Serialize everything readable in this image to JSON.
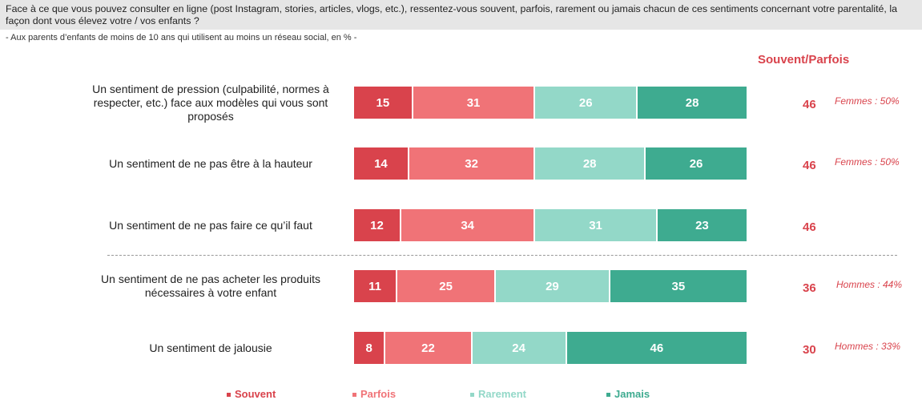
{
  "header": {
    "question": "Face à ce que vous pouvez consulter en ligne (post Instagram, stories, articles, vlogs, etc.), ressentez-vous souvent, parfois, rarement ou jamais chacun de ces sentiments concernant votre parentalité, la façon dont vous élevez votre / vos enfants ?",
    "subtitle": "- Aux parents d’enfants de moins de 10 ans qui utilisent au moins un réseau social, en % -"
  },
  "summary_header": "Souvent/Parfois",
  "colors": {
    "Souvent": "#d9434c",
    "Parfois": "#f07377",
    "Rarement": "#93d8c8",
    "Jamais": "#3eab90",
    "accent": "#d9434c"
  },
  "chart_data": {
    "type": "bar",
    "orientation": "horizontal",
    "stacked": true,
    "unit": "%",
    "categories": [
      "Un sentiment de pression (culpabilité, normes à respecter, etc.) face aux modèles qui vous sont proposés",
      "Un sentiment de ne pas être à la hauteur",
      "Un sentiment de ne pas faire ce qu’il faut",
      "Un sentiment de ne pas acheter les produits nécessaires à votre enfant",
      "Un sentiment de jalousie"
    ],
    "series": [
      {
        "name": "Souvent",
        "values": [
          15,
          14,
          12,
          11,
          8
        ]
      },
      {
        "name": "Parfois",
        "values": [
          31,
          32,
          34,
          25,
          22
        ]
      },
      {
        "name": "Rarement",
        "values": [
          26,
          28,
          31,
          29,
          24
        ]
      },
      {
        "name": "Jamais",
        "values": [
          28,
          26,
          23,
          35,
          46
        ]
      }
    ],
    "souvent_parfois": [
      46,
      46,
      46,
      36,
      30
    ],
    "notes": [
      "Femmes : 50%",
      "Femmes : 50%",
      "",
      "Hommes : 44%",
      "Hommes : 33%"
    ],
    "legend": [
      "Souvent",
      "Parfois",
      "Rarement",
      "Jamais"
    ],
    "legend_position": "bottom"
  }
}
